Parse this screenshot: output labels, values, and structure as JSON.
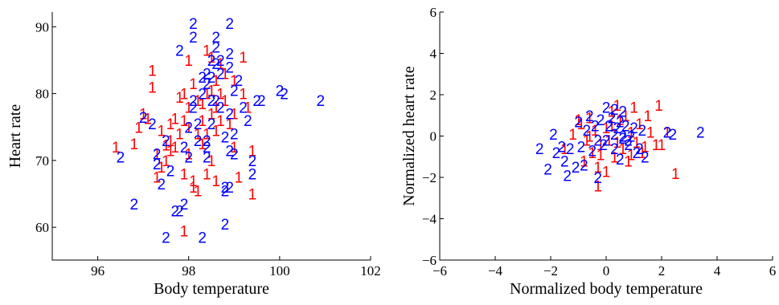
{
  "chart_data": [
    {
      "type": "scatter",
      "xlabel": "Body temperature",
      "ylabel": "Heart rate",
      "xlim": [
        95,
        102
      ],
      "ylim": [
        55.1,
        92.2
      ],
      "xticks": [
        96,
        98,
        100,
        102
      ],
      "yticks": [
        60,
        70,
        80,
        90
      ],
      "series": [
        {
          "name": "1",
          "color": "#ff0000",
          "points": [
            [
              96.4,
              72
            ],
            [
              96.8,
              72.5
            ],
            [
              96.9,
              75
            ],
            [
              97.0,
              77
            ],
            [
              97.1,
              76.3
            ],
            [
              97.2,
              81
            ],
            [
              97.2,
              83.5
            ],
            [
              97.3,
              71
            ],
            [
              97.3,
              67.5
            ],
            [
              97.4,
              74.5
            ],
            [
              97.4,
              69
            ],
            [
              97.5,
              72.3
            ],
            [
              97.5,
              70
            ],
            [
              97.6,
              75.5
            ],
            [
              97.6,
              73
            ],
            [
              97.6,
              71.5
            ],
            [
              97.7,
              76.3
            ],
            [
              97.7,
              72
            ],
            [
              97.8,
              79.5
            ],
            [
              97.8,
              74
            ],
            [
              97.9,
              80
            ],
            [
              97.9,
              76
            ],
            [
              97.9,
              68
            ],
            [
              97.9,
              59.5
            ],
            [
              98.0,
              85
            ],
            [
              98.0,
              78
            ],
            [
              98.0,
              75
            ],
            [
              98.0,
              71
            ],
            [
              98.1,
              81.5
            ],
            [
              98.1,
              67
            ],
            [
              98.1,
              66
            ],
            [
              98.2,
              79
            ],
            [
              98.2,
              74
            ],
            [
              98.2,
              65.5
            ],
            [
              98.3,
              78.5
            ],
            [
              98.3,
              76
            ],
            [
              98.3,
              72.5
            ],
            [
              98.4,
              86.5
            ],
            [
              98.4,
              80
            ],
            [
              98.4,
              74
            ],
            [
              98.4,
              68
            ],
            [
              98.5,
              85.5
            ],
            [
              98.5,
              80.5
            ],
            [
              98.5,
              77
            ],
            [
              98.5,
              70
            ],
            [
              98.6,
              82
            ],
            [
              98.6,
              78
            ],
            [
              98.6,
              74.5
            ],
            [
              98.6,
              67
            ],
            [
              98.7,
              84.5
            ],
            [
              98.7,
              80
            ],
            [
              98.7,
              76
            ],
            [
              98.8,
              79
            ],
            [
              98.8,
              83
            ],
            [
              98.9,
              75.5
            ],
            [
              99.0,
              82
            ],
            [
              99.0,
              77
            ],
            [
              99.0,
              72
            ],
            [
              99.1,
              67.5
            ],
            [
              99.2,
              85.5
            ],
            [
              99.2,
              80
            ],
            [
              99.3,
              78
            ],
            [
              99.4,
              71.5
            ],
            [
              99.4,
              65
            ]
          ]
        },
        {
          "name": "2",
          "color": "#0000ff",
          "points": [
            [
              96.5,
              70.5
            ],
            [
              96.8,
              63.5
            ],
            [
              97.0,
              76.5
            ],
            [
              97.2,
              75.5
            ],
            [
              97.3,
              69.5
            ],
            [
              97.3,
              71
            ],
            [
              97.4,
              66.5
            ],
            [
              97.5,
              58.5
            ],
            [
              97.5,
              73
            ],
            [
              97.6,
              68.5
            ],
            [
              97.7,
              62.5
            ],
            [
              97.8,
              86.5
            ],
            [
              97.8,
              62.5
            ],
            [
              97.9,
              63.5
            ],
            [
              97.9,
              72
            ],
            [
              98.0,
              70.5
            ],
            [
              98.0,
              75
            ],
            [
              98.1,
              79
            ],
            [
              98.1,
              78
            ],
            [
              98.1,
              90.5
            ],
            [
              98.1,
              88.5
            ],
            [
              98.2,
              73
            ],
            [
              98.2,
              75.5
            ],
            [
              98.3,
              82.5
            ],
            [
              98.3,
              80
            ],
            [
              98.3,
              58.5
            ],
            [
              98.4,
              70.5
            ],
            [
              98.4,
              72
            ],
            [
              98.4,
              73
            ],
            [
              98.4,
              81.5
            ],
            [
              98.4,
              83
            ],
            [
              98.5,
              85
            ],
            [
              98.5,
              79
            ],
            [
              98.5,
              75.5
            ],
            [
              98.5,
              82.5
            ],
            [
              98.6,
              87
            ],
            [
              98.6,
              88.5
            ],
            [
              98.6,
              84.5
            ],
            [
              98.6,
              79
            ],
            [
              98.7,
              85
            ],
            [
              98.7,
              83
            ],
            [
              98.7,
              78
            ],
            [
              98.8,
              73.5
            ],
            [
              98.8,
              65.5
            ],
            [
              98.8,
              66
            ],
            [
              98.8,
              60.5
            ],
            [
              98.9,
              90.5
            ],
            [
              98.9,
              86
            ],
            [
              98.9,
              84
            ],
            [
              98.9,
              77
            ],
            [
              98.9,
              71.5
            ],
            [
              98.9,
              66
            ],
            [
              99.0,
              74
            ],
            [
              99.0,
              71
            ],
            [
              99.0,
              80.5
            ],
            [
              99.1,
              82
            ],
            [
              99.2,
              78
            ],
            [
              99.3,
              76
            ],
            [
              99.4,
              70
            ],
            [
              99.4,
              68
            ],
            [
              99.5,
              79
            ],
            [
              99.6,
              79
            ],
            [
              100.0,
              80.5
            ],
            [
              100.1,
              80
            ],
            [
              100.9,
              79
            ]
          ]
        }
      ]
    },
    {
      "type": "scatter",
      "xlabel": "Normalized body temperature",
      "ylabel": "Normalized heart rate",
      "xlim": [
        -6,
        6
      ],
      "ylim": [
        -6,
        6
      ],
      "xticks": [
        -6,
        -4,
        -2,
        0,
        2,
        4,
        6
      ],
      "yticks": [
        -6,
        -4,
        -2,
        0,
        2,
        4,
        6
      ],
      "series": [
        {
          "name": "1",
          "color": "#ff0000",
          "points": [
            [
              -1.2,
              0.1
            ],
            [
              -0.9,
              0.6
            ],
            [
              -0.8,
              -1.2
            ],
            [
              -0.7,
              -0.2
            ],
            [
              -0.6,
              0.9
            ],
            [
              -0.5,
              -0.8
            ],
            [
              -0.4,
              0.3
            ],
            [
              -0.3,
              -1.5
            ],
            [
              -0.3,
              -2.4
            ],
            [
              -0.2,
              -0.4
            ],
            [
              0.0,
              0.4
            ],
            [
              0.1,
              -0.2
            ],
            [
              0.2,
              0.5
            ],
            [
              0.3,
              -1.0
            ],
            [
              0.4,
              1.5
            ],
            [
              0.4,
              -0.3
            ],
            [
              0.5,
              0.8
            ],
            [
              0.6,
              -0.6
            ],
            [
              0.7,
              1.0
            ],
            [
              0.8,
              -1.2
            ],
            [
              0.9,
              0.2
            ],
            [
              1.0,
              1.4
            ],
            [
              1.1,
              -0.3
            ],
            [
              1.2,
              0.6
            ],
            [
              1.3,
              -0.8
            ],
            [
              1.5,
              1.0
            ],
            [
              1.6,
              0.2
            ],
            [
              1.8,
              -0.4
            ],
            [
              1.9,
              1.5
            ],
            [
              2.0,
              -0.4
            ],
            [
              2.2,
              0.2
            ],
            [
              2.5,
              -1.8
            ],
            [
              -1.5,
              -0.6
            ],
            [
              -1.0,
              0.8
            ],
            [
              -0.6,
              0.0
            ],
            [
              0.0,
              -1.7
            ],
            [
              0.9,
              -0.9
            ],
            [
              1.4,
              -0.5
            ],
            [
              0.2,
              1.2
            ],
            [
              -0.2,
              -0.9
            ]
          ]
        },
        {
          "name": "2",
          "color": "#0000ff",
          "points": [
            [
              -2.4,
              -0.6
            ],
            [
              -2.1,
              -1.6
            ],
            [
              -1.9,
              0.1
            ],
            [
              -1.8,
              -0.8
            ],
            [
              -1.6,
              -0.5
            ],
            [
              -1.5,
              -1.2
            ],
            [
              -1.4,
              -1.9
            ],
            [
              -1.3,
              -0.6
            ],
            [
              -1.1,
              -1.5
            ],
            [
              -1.0,
              0.7
            ],
            [
              -0.9,
              -0.5
            ],
            [
              -0.8,
              -1.4
            ],
            [
              -0.7,
              0.3
            ],
            [
              -0.6,
              1.0
            ],
            [
              -0.5,
              -0.7
            ],
            [
              -0.4,
              0.5
            ],
            [
              -0.3,
              -0.2
            ],
            [
              -0.2,
              0.8
            ],
            [
              -0.1,
              -0.4
            ],
            [
              0.0,
              1.4
            ],
            [
              0.0,
              -0.2
            ],
            [
              0.1,
              0.5
            ],
            [
              0.2,
              0.9
            ],
            [
              0.3,
              1.3
            ],
            [
              0.3,
              -0.6
            ],
            [
              0.4,
              0.4
            ],
            [
              0.5,
              0.7
            ],
            [
              0.5,
              -1.1
            ],
            [
              0.6,
              1.2
            ],
            [
              0.6,
              -0.1
            ],
            [
              0.7,
              0.5
            ],
            [
              0.8,
              -0.4
            ],
            [
              0.9,
              0.0
            ],
            [
              1.0,
              0.4
            ],
            [
              1.1,
              -0.8
            ],
            [
              1.3,
              0.3
            ],
            [
              1.4,
              -1.0
            ],
            [
              2.2,
              0.2
            ],
            [
              2.4,
              0.1
            ],
            [
              3.4,
              0.2
            ],
            [
              -0.3,
              -2.0
            ],
            [
              0.3,
              0.1
            ],
            [
              0.6,
              0.0
            ],
            [
              1.2,
              -0.6
            ],
            [
              0.8,
              -0.2
            ]
          ]
        }
      ]
    }
  ]
}
